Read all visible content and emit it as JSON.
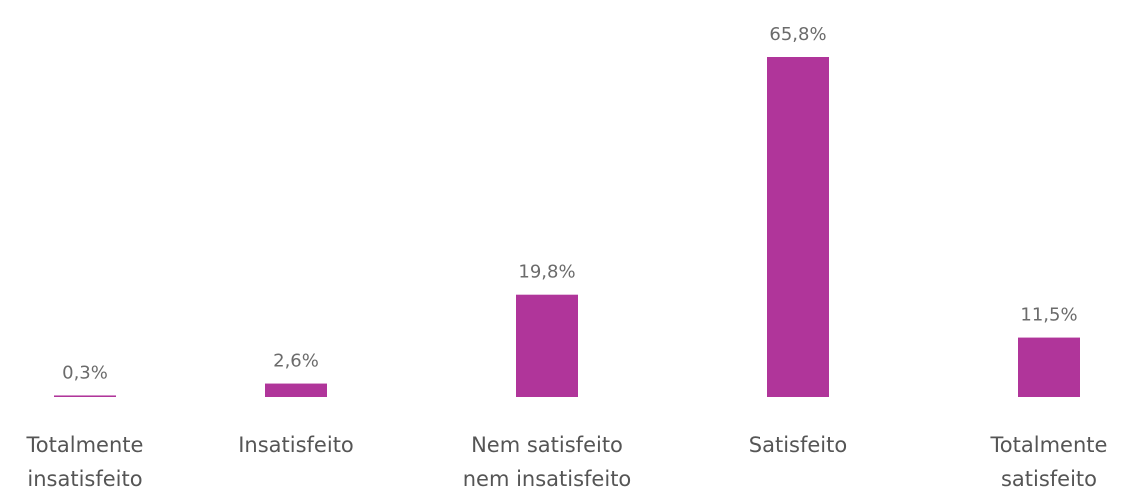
{
  "chart_data": {
    "type": "bar",
    "categories": [
      "Totalmente\ninsatisfeito",
      "Insatisfeito",
      "Nem satisfeito\nnem insatisfeito",
      "Satisfeito",
      "Totalmente\nsatisfeito"
    ],
    "values": [
      0.3,
      2.6,
      19.8,
      65.8,
      11.5
    ],
    "value_labels": [
      "0,3%",
      "2,6%",
      "19,8%",
      "65,8%",
      "11,5%"
    ],
    "color": "#b0359a"
  }
}
